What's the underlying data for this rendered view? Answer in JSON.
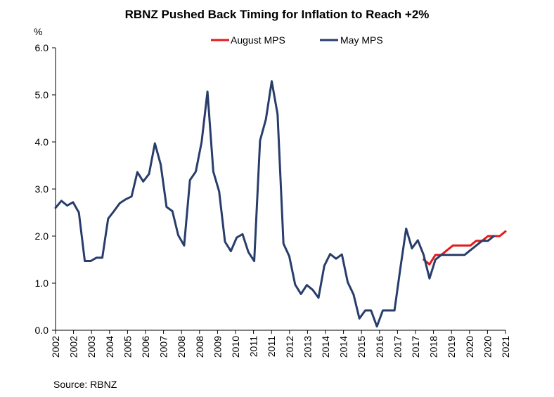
{
  "chart_data": {
    "type": "line",
    "title": "RBNZ Pushed Back Timing for Inflation to Reach +2%",
    "ylabel": "%",
    "ylim": [
      0,
      6
    ],
    "yticks": [
      "0.0",
      "1.0",
      "2.0",
      "3.0",
      "4.0",
      "5.0",
      "6.0"
    ],
    "year_labels": [
      "2002",
      "2002",
      "2003",
      "2004",
      "2005",
      "2006",
      "2007",
      "2008",
      "2008",
      "2009",
      "2010",
      "2011",
      "2011",
      "2012",
      "2013",
      "2014",
      "2014",
      "2015",
      "2016",
      "2017",
      "2017",
      "2018",
      "2019",
      "2020",
      "2020",
      "2021"
    ],
    "source": "Source: RBNZ",
    "legend_position": "top-right",
    "x_range": [
      2002.0,
      2021.25
    ],
    "series": [
      {
        "name": "August MPS",
        "color": "#e31a1c",
        "x": [
          2017.75,
          2018.0,
          2018.25,
          2018.5,
          2018.75,
          2019.0,
          2019.25,
          2019.5,
          2019.75,
          2020.0,
          2020.25,
          2020.5,
          2020.75,
          2021.0,
          2021.25
        ],
        "values": [
          1.5,
          1.4,
          1.6,
          1.6,
          1.7,
          1.8,
          1.8,
          1.8,
          1.8,
          1.9,
          1.9,
          2.0,
          2.0,
          2.0,
          2.1
        ]
      },
      {
        "name": "May MPS",
        "color": "#283d6b",
        "x": [
          2002.0,
          2002.25,
          2002.5,
          2002.75,
          2003.0,
          2003.25,
          2003.5,
          2003.75,
          2004.0,
          2004.25,
          2004.5,
          2004.75,
          2005.0,
          2005.25,
          2005.5,
          2005.75,
          2006.0,
          2006.25,
          2006.5,
          2006.75,
          2007.0,
          2007.25,
          2007.5,
          2007.75,
          2008.0,
          2008.25,
          2008.5,
          2008.75,
          2009.0,
          2009.25,
          2009.5,
          2009.75,
          2010.0,
          2010.25,
          2010.5,
          2010.75,
          2011.0,
          2011.25,
          2011.5,
          2011.75,
          2012.0,
          2012.25,
          2012.5,
          2012.75,
          2013.0,
          2013.25,
          2013.5,
          2013.75,
          2014.0,
          2014.25,
          2014.5,
          2014.75,
          2015.0,
          2015.25,
          2015.5,
          2015.75,
          2016.0,
          2016.25,
          2016.5,
          2016.75,
          2017.0,
          2017.25,
          2017.5,
          2017.75,
          2018.0,
          2018.25,
          2018.5,
          2018.75,
          2019.0,
          2019.25,
          2019.5,
          2019.75,
          2020.0,
          2020.25,
          2020.5,
          2020.75
        ],
        "values": [
          2.6,
          2.75,
          2.65,
          2.72,
          2.5,
          1.47,
          1.47,
          1.54,
          1.54,
          2.37,
          2.53,
          2.7,
          2.78,
          2.84,
          3.36,
          3.16,
          3.32,
          3.97,
          3.52,
          2.62,
          2.53,
          2.02,
          1.8,
          3.19,
          3.37,
          4.0,
          5.07,
          3.37,
          2.95,
          1.88,
          1.68,
          1.97,
          2.04,
          1.66,
          1.47,
          4.03,
          4.48,
          5.29,
          4.59,
          1.84,
          1.57,
          0.97,
          0.77,
          0.96,
          0.86,
          0.69,
          1.37,
          1.62,
          1.52,
          1.61,
          1.02,
          0.76,
          0.25,
          0.42,
          0.42,
          0.08,
          0.42,
          0.42,
          0.42,
          1.31,
          2.16,
          1.74,
          1.91,
          1.6,
          1.1,
          1.5,
          1.6,
          1.6,
          1.6,
          1.6,
          1.6,
          1.7,
          1.8,
          1.9,
          1.9,
          2.0
        ]
      }
    ]
  }
}
